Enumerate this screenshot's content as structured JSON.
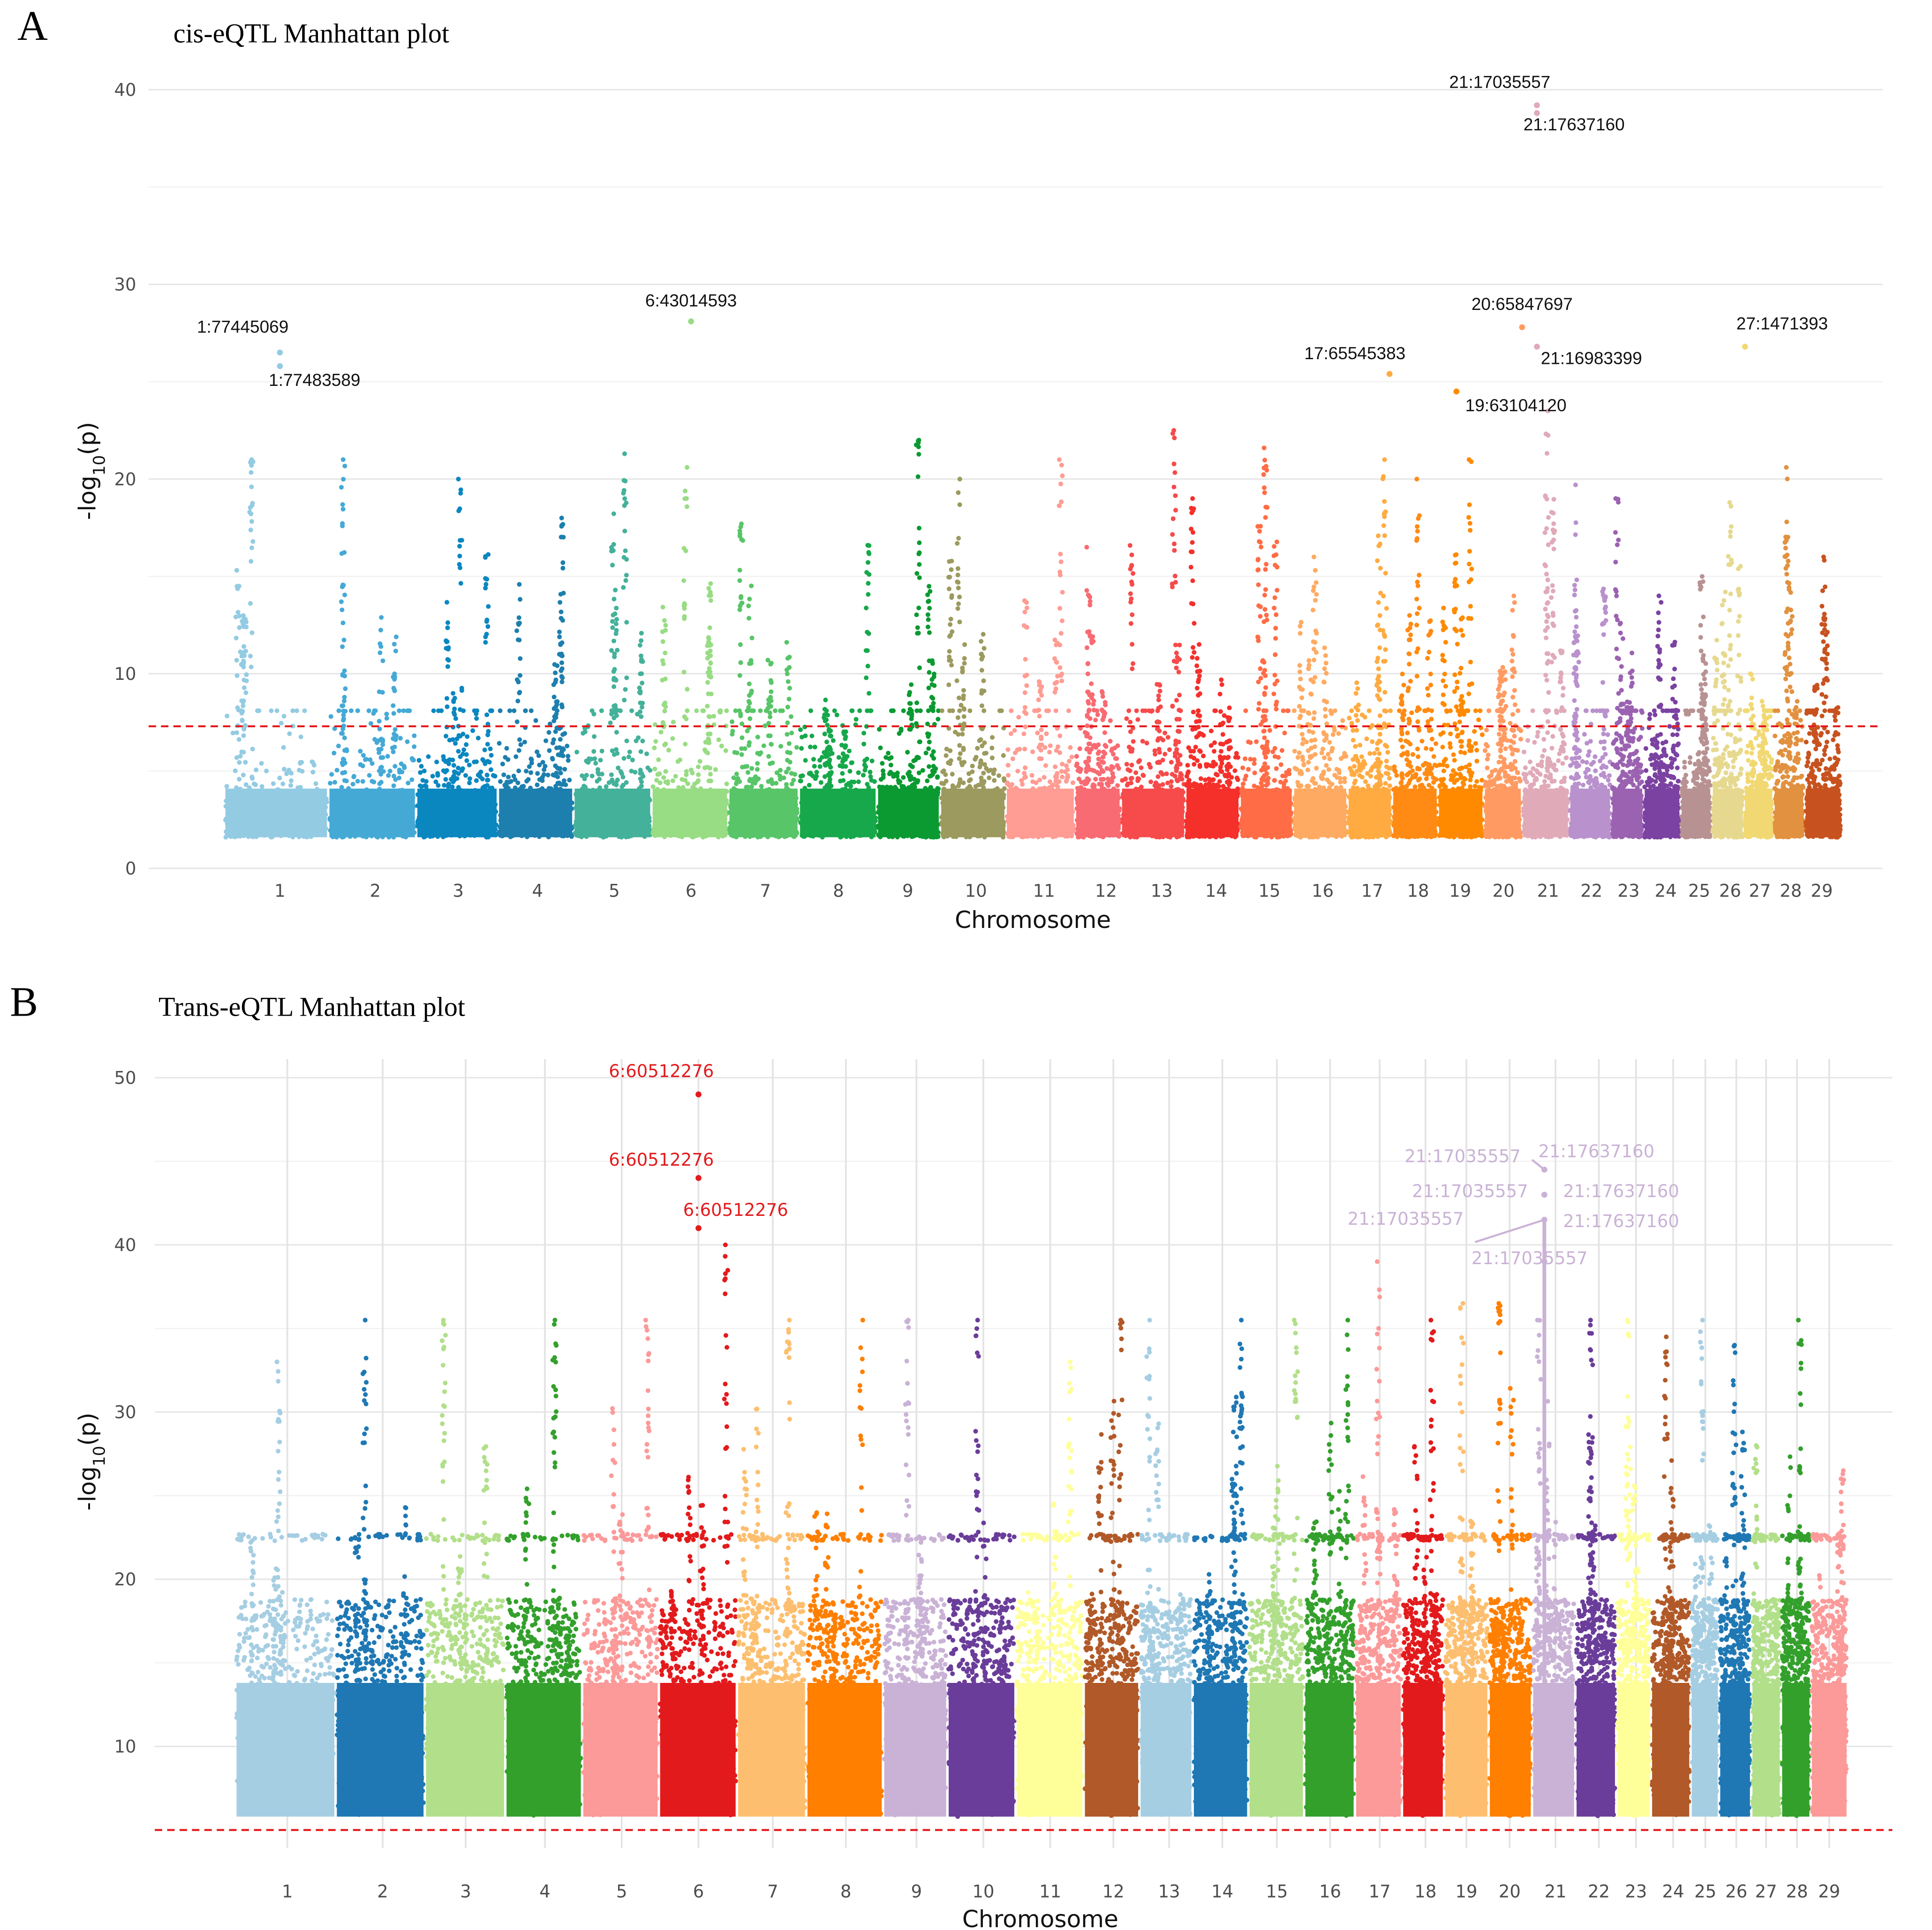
{
  "chart_data": [
    {
      "type": "scatter",
      "panel": "A",
      "title": "cis-eQTL Manhattan plot",
      "xlabel": "Chromosome",
      "ylabel": {
        "prefix": "-log",
        "sub": "10",
        "suffix": "(p)"
      },
      "ylim": [
        0,
        41
      ],
      "yticks": [
        0,
        10,
        20,
        30,
        40
      ],
      "grid": true,
      "significance_threshold": 7.3,
      "threshold_color": "#e41a1c",
      "chromosomes": [
        "1",
        "2",
        "3",
        "4",
        "5",
        "6",
        "7",
        "8",
        "9",
        "10",
        "11",
        "12",
        "13",
        "14",
        "15",
        "16",
        "17",
        "18",
        "19",
        "20",
        "21",
        "22",
        "23",
        "24",
        "25",
        "26",
        "27",
        "28",
        "29"
      ],
      "colors": [
        "#93cbe3",
        "#45a9d6",
        "#0b87c0",
        "#1d7fae",
        "#44b19a",
        "#98dc84",
        "#58c568",
        "#16a84a",
        "#0b9a32",
        "#9c9a5e",
        "#ff9c93",
        "#f86b72",
        "#f74a4a",
        "#f5302b",
        "#ff6c46",
        "#ffaa62",
        "#ffab42",
        "#ff8b14",
        "#ff8a00",
        "#ff9b62",
        "#e0aab9",
        "#b991cd",
        "#9b62b1",
        "#7b42a1",
        "#b89292",
        "#e6d98f",
        "#f1d872",
        "#e19140",
        "#c8521f"
      ],
      "max_unlabeled": [
        21,
        21,
        20,
        18,
        21.3,
        20.6,
        17.7,
        16.6,
        22,
        20,
        21,
        16.5,
        22.5,
        19,
        21.6,
        16,
        21,
        20,
        21,
        14,
        23.5,
        19.7,
        19,
        14,
        15,
        18.8,
        10,
        20.6,
        16
      ],
      "annotations": [
        {
          "chrom": "1",
          "label": "1:77445069",
          "value": 26.5
        },
        {
          "chrom": "1",
          "label": "1:77483589",
          "value": 25.8
        },
        {
          "chrom": "6",
          "label": "6:43014593",
          "value": 28.1
        },
        {
          "chrom": "17",
          "label": "17:65545383",
          "value": 25.4
        },
        {
          "chrom": "20",
          "label": "20:65847697",
          "value": 27.8
        },
        {
          "chrom": "19",
          "label": "19:63104120",
          "value": 24.5
        },
        {
          "chrom": "21",
          "label": "21:16983399",
          "value": 26.8
        },
        {
          "chrom": "21",
          "label": "21:17035557",
          "value": 39.2
        },
        {
          "chrom": "21",
          "label": "21:17637160",
          "value": 38.8
        },
        {
          "chrom": "27",
          "label": "27:1471393",
          "value": 26.8
        }
      ]
    },
    {
      "type": "scatter",
      "panel": "B",
      "title": "Trans-eQTL Manhattan plot",
      "xlabel": "Chromosome",
      "ylabel": {
        "prefix": "-log",
        "sub": "10",
        "suffix": "(p)"
      },
      "ylim": [
        5,
        51
      ],
      "yticks": [
        10,
        20,
        30,
        40,
        50
      ],
      "grid": true,
      "significance_threshold": 5,
      "threshold_color": "#e41a1c",
      "chromosomes": [
        "1",
        "2",
        "3",
        "4",
        "5",
        "6",
        "7",
        "8",
        "9",
        "10",
        "11",
        "12",
        "13",
        "14",
        "15",
        "16",
        "17",
        "18",
        "19",
        "20",
        "21",
        "22",
        "23",
        "24",
        "25",
        "26",
        "27",
        "28",
        "29"
      ],
      "colors": [
        "#a6cee3",
        "#1f78b4",
        "#b2df8a",
        "#33a02c",
        "#fb9a99",
        "#e31a1c",
        "#fdbf6f",
        "#ff7f00",
        "#cab2d6",
        "#6a3d9a",
        "#ffff99",
        "#b15928",
        "#a6cee3",
        "#1f78b4",
        "#b2df8a",
        "#33a02c",
        "#fb9a99",
        "#e31a1c",
        "#fdbf6f",
        "#ff7f00",
        "#cab2d6",
        "#6a3d9a",
        "#ffff99",
        "#b15928",
        "#a6cee3",
        "#1f78b4",
        "#b2df8a",
        "#33a02c",
        "#fb9a99"
      ],
      "max_unlabeled": [
        33,
        35.5,
        35.5,
        35.5,
        35.5,
        40,
        35.5,
        35.5,
        35.5,
        35.5,
        33,
        35.5,
        35.5,
        35.5,
        35.5,
        35.5,
        39,
        35.5,
        36.5,
        36.5,
        35.5,
        35.5,
        35.5,
        34.5,
        35.5,
        34,
        28,
        35.5,
        26.5
      ],
      "band_value": 22.5,
      "annotations": [
        {
          "chrom": "6",
          "label": "6:60512276",
          "value": 49.0,
          "color": "#e31a1c"
        },
        {
          "chrom": "6",
          "label": "6:60512276",
          "value": 44.0,
          "color": "#e31a1c"
        },
        {
          "chrom": "6",
          "label": "6:60512276",
          "value": 41.0,
          "color": "#e31a1c"
        },
        {
          "chrom": "21",
          "label": "21:17035557",
          "value": 44.5,
          "color": "#cab2d6"
        },
        {
          "chrom": "21",
          "label": "21:17637160",
          "value": 44.5,
          "color": "#cab2d6"
        },
        {
          "chrom": "21",
          "label": "21:17035557",
          "value": 43.0,
          "color": "#cab2d6"
        },
        {
          "chrom": "21",
          "label": "21:17637160",
          "value": 43.0,
          "color": "#cab2d6"
        },
        {
          "chrom": "21",
          "label": "21:17035557",
          "value": 41.5,
          "color": "#cab2d6"
        },
        {
          "chrom": "21",
          "label": "21:17637160",
          "value": 41.5,
          "color": "#cab2d6"
        },
        {
          "chrom": "21",
          "label": "21:17035557",
          "value": 39.0,
          "color": "#cab2d6"
        }
      ]
    }
  ]
}
